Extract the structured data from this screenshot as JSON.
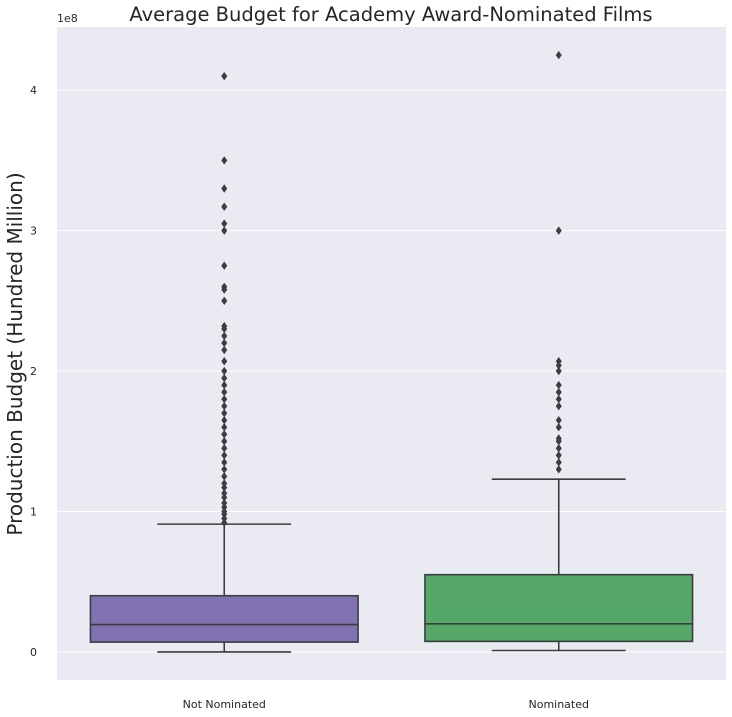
{
  "chart_data": {
    "type": "box",
    "title": "Average Budget for Academy Award-Nominated Films",
    "xlabel": "",
    "ylabel": "Production Budget (Hundred Million)",
    "y_offset_label": "1e8",
    "ylim": [
      -20000000,
      445000000
    ],
    "yticks": [
      0,
      100000000,
      200000000,
      300000000,
      400000000
    ],
    "ytick_labels": [
      "0",
      "1",
      "2",
      "3",
      "4"
    ],
    "grid": true,
    "legend": "none",
    "categories": [
      "Not Nominated",
      "Nominated"
    ],
    "boxes": [
      {
        "category": "Not Nominated",
        "color": "#8172b3",
        "whisker_low": 0,
        "q1": 7000000,
        "median": 19500000,
        "q3": 40000000,
        "whisker_high": 91000000,
        "outliers": [
          92000000,
          95000000,
          98000000,
          100000000,
          103000000,
          106000000,
          110000000,
          113000000,
          117000000,
          120000000,
          125000000,
          130000000,
          135000000,
          140000000,
          145000000,
          150000000,
          155000000,
          160000000,
          165000000,
          170000000,
          175000000,
          180000000,
          185000000,
          190000000,
          195000000,
          200000000,
          207000000,
          215000000,
          220000000,
          225000000,
          230000000,
          232000000,
          250000000,
          258000000,
          260000000,
          275000000,
          300000000,
          305000000,
          317000000,
          330000000,
          350000000,
          410000000
        ]
      },
      {
        "category": "Nominated",
        "color": "#55a868",
        "whisker_low": 1000000,
        "q1": 7500000,
        "median": 20000000,
        "q3": 55000000,
        "whisker_high": 123000000,
        "outliers": [
          130000000,
          135000000,
          140000000,
          145000000,
          150000000,
          152000000,
          160000000,
          165000000,
          175000000,
          180000000,
          185000000,
          190000000,
          200000000,
          204000000,
          207000000,
          300000000,
          425000000
        ]
      }
    ]
  },
  "colors": {
    "plot_background": "#eaeaf2",
    "grid": "#ffffff",
    "box_edge": "#3d3d3d",
    "text": "#262626"
  }
}
